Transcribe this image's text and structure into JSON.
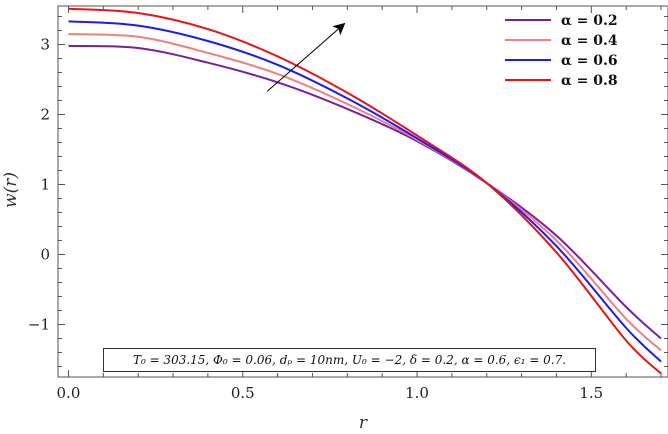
{
  "chart_data": {
    "type": "line",
    "xlabel": "r",
    "ylabel": "w(r)",
    "xlim": [
      -0.03,
      1.72
    ],
    "ylim": [
      -1.75,
      3.55
    ],
    "x_ticks": [
      0.0,
      0.5,
      1.0,
      1.5
    ],
    "x_tick_labels": [
      "0.0",
      "0.5",
      "1.0",
      "1.5"
    ],
    "y_ticks": [
      -1,
      0,
      1,
      2,
      3
    ],
    "y_tick_labels": [
      "−1",
      "0",
      "1",
      "2",
      "3"
    ],
    "legend_placement": "top-right",
    "grid": false,
    "annotation_arrow": {
      "from": [
        0.57,
        2.33
      ],
      "to": [
        0.79,
        3.29
      ],
      "meaning": "increasing alpha"
    },
    "parameter_box_text": "T₀ = 303.15, Φ₀ = 0.06, dₚ = 10nm, U₀ = −2, δ = 0.2, α = 0.6, ϵ₁ = 0.7.",
    "series": [
      {
        "name": "α = 0.2",
        "color": "#7b1fa2",
        "x": [
          0.0,
          0.2,
          0.4,
          0.6,
          0.8,
          1.0,
          1.2,
          1.4,
          1.6,
          1.7
        ],
        "y": [
          2.98,
          2.95,
          2.74,
          2.46,
          2.08,
          1.62,
          1.02,
          0.27,
          -0.75,
          -1.2
        ]
      },
      {
        "name": "α = 0.4",
        "color": "#f08080",
        "x": [
          0.0,
          0.2,
          0.4,
          0.6,
          0.8,
          1.0,
          1.2,
          1.4,
          1.6,
          1.7
        ],
        "y": [
          3.15,
          3.11,
          2.88,
          2.58,
          2.15,
          1.64,
          1.02,
          0.2,
          -0.92,
          -1.37
        ]
      },
      {
        "name": "α = 0.6",
        "color": "#1a1aff",
        "x": [
          0.0,
          0.2,
          0.4,
          0.6,
          0.8,
          1.0,
          1.2,
          1.4,
          1.6,
          1.7
        ],
        "y": [
          3.33,
          3.27,
          3.05,
          2.71,
          2.23,
          1.66,
          1.02,
          0.12,
          -1.05,
          -1.53
        ]
      },
      {
        "name": "α = 0.8",
        "color": "#ee1111",
        "x": [
          0.0,
          0.2,
          0.4,
          0.6,
          0.8,
          1.0,
          1.2,
          1.4,
          1.6,
          1.7
        ],
        "y": [
          3.51,
          3.45,
          3.22,
          2.83,
          2.31,
          1.7,
          1.02,
          0.03,
          -1.23,
          -1.7
        ]
      }
    ]
  }
}
